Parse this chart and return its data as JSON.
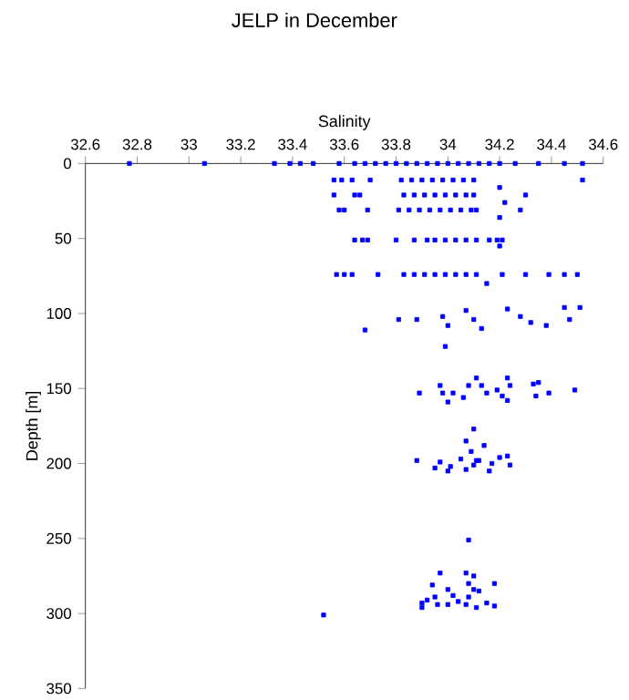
{
  "chart_data": {
    "type": "scatter",
    "title": "JELP in December",
    "xlabel": "Salinity",
    "ylabel": "Depth [m]",
    "xlim": [
      32.6,
      34.6
    ],
    "xticks": [
      32.6,
      32.8,
      33,
      33.2,
      33.4,
      33.6,
      33.8,
      34,
      34.2,
      34.4,
      34.6
    ],
    "ylim": [
      350,
      0
    ],
    "yticks": [
      0,
      50,
      100,
      150,
      200,
      250,
      300,
      350
    ],
    "marker": "square",
    "color": "#0000ff",
    "x": [
      32.77,
      33.06,
      33.33,
      33.39,
      33.43,
      33.48,
      33.58,
      33.64,
      33.68,
      33.72,
      33.76,
      33.8,
      33.84,
      33.88,
      33.92,
      33.96,
      34.0,
      34.04,
      34.08,
      34.12,
      34.16,
      34.2,
      34.26,
      34.35,
      34.45,
      34.52,
      33.56,
      33.59,
      33.63,
      33.7,
      33.82,
      33.86,
      33.9,
      33.94,
      33.98,
      34.02,
      34.06,
      34.1,
      34.2,
      34.52,
      33.56,
      33.64,
      33.66,
      33.83,
      33.87,
      33.91,
      33.95,
      33.99,
      34.03,
      34.07,
      34.1,
      34.22,
      34.3,
      33.58,
      33.6,
      33.69,
      33.81,
      33.85,
      33.89,
      33.93,
      33.97,
      34.01,
      34.05,
      34.09,
      34.11,
      34.2,
      34.28,
      33.64,
      33.67,
      33.69,
      33.8,
      33.87,
      33.92,
      33.95,
      33.99,
      34.03,
      34.07,
      34.11,
      34.16,
      34.19,
      34.21,
      34.2,
      33.57,
      33.6,
      33.63,
      33.73,
      33.83,
      33.87,
      33.91,
      33.95,
      33.99,
      34.03,
      34.07,
      34.11,
      34.15,
      34.21,
      34.3,
      34.39,
      34.45,
      34.5,
      33.68,
      33.81,
      33.88,
      33.98,
      34.0,
      33.99,
      34.07,
      34.1,
      34.13,
      34.23,
      34.28,
      34.32,
      34.38,
      34.45,
      34.47,
      34.51,
      33.89,
      33.97,
      33.98,
      34.0,
      34.02,
      34.06,
      34.08,
      34.11,
      34.13,
      34.15,
      34.19,
      34.21,
      34.23,
      34.24,
      34.23,
      34.33,
      34.35,
      34.34,
      34.39,
      34.49,
      34.1,
      34.07,
      34.14,
      34.09,
      33.88,
      33.97,
      33.95,
      34.0,
      34.01,
      34.05,
      34.11,
      34.12,
      34.17,
      34.2,
      34.23,
      34.24,
      34.07,
      34.1,
      34.16,
      34.08,
      33.97,
      34.07,
      34.1,
      34.08,
      34.18,
      33.94,
      34.0,
      34.1,
      34.12,
      33.95,
      34.02,
      34.08,
      33.92,
      34.04,
      33.9,
      33.9,
      33.96,
      34.0,
      34.07,
      34.11,
      34.15,
      34.18,
      33.52
    ],
    "values": [
      0,
      0,
      0,
      0,
      0,
      0,
      0,
      0,
      0,
      0,
      0,
      0,
      0,
      0,
      0,
      0,
      0,
      0,
      0,
      0,
      0,
      0,
      0,
      0,
      0,
      0,
      11,
      11,
      11,
      11,
      11,
      11,
      11,
      11,
      11,
      11,
      11,
      11,
      16,
      11,
      21,
      21,
      21,
      21,
      21,
      21,
      21,
      21,
      21,
      21,
      21,
      26,
      21,
      31,
      31,
      31,
      31,
      31,
      31,
      31,
      31,
      31,
      31,
      31,
      31,
      36,
      31,
      51,
      51,
      51,
      51,
      51,
      51,
      51,
      51,
      51,
      51,
      51,
      51,
      51,
      51,
      55,
      74,
      74,
      74,
      74,
      74,
      74,
      74,
      74,
      74,
      74,
      74,
      74,
      80,
      74,
      74,
      74,
      74,
      74,
      111,
      104,
      104,
      102,
      108,
      122,
      98,
      104,
      110,
      97,
      102,
      106,
      108,
      96,
      104,
      96,
      153,
      148,
      153,
      159,
      153,
      156,
      148,
      143,
      148,
      153,
      151,
      155,
      143,
      148,
      158,
      147,
      146,
      155,
      153,
      151,
      177,
      185,
      188,
      192,
      198,
      199,
      203,
      205,
      202,
      197,
      198,
      198,
      200,
      196,
      195,
      201,
      204,
      201,
      205,
      251,
      273,
      273,
      275,
      280,
      280,
      281,
      284,
      284,
      285,
      289,
      288,
      289,
      291,
      292,
      293,
      296,
      294,
      294,
      294,
      296,
      293,
      295,
      301
    ]
  }
}
